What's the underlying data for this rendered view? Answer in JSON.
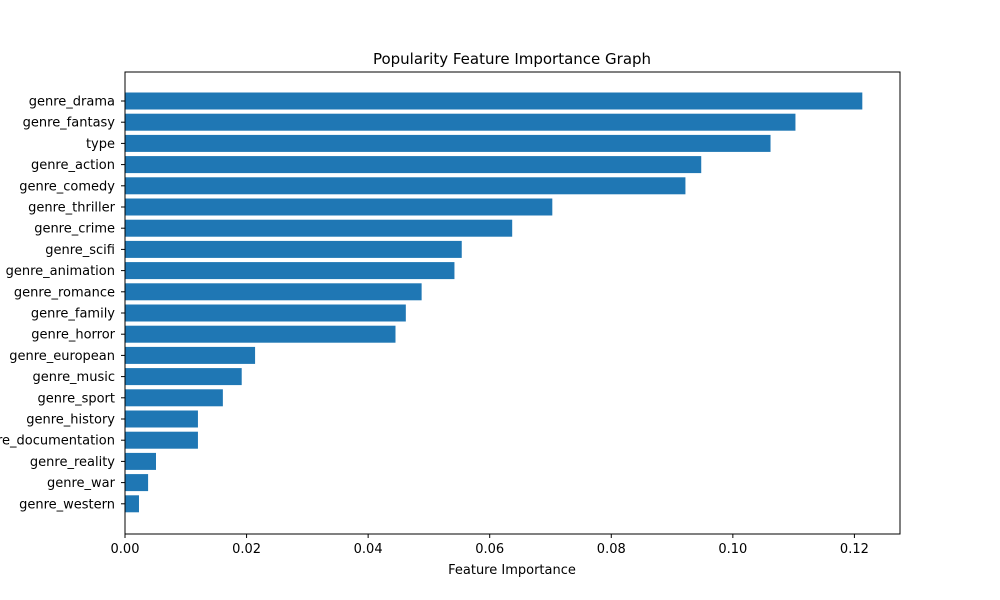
{
  "chart_data": {
    "type": "bar",
    "orientation": "horizontal",
    "title": "Popularity Feature Importance Graph",
    "xlabel": "Feature Importance",
    "ylabel": "",
    "xlim": [
      0,
      0.1275
    ],
    "xticks": [
      0.0,
      0.02,
      0.04,
      0.06,
      0.08,
      0.1,
      0.12
    ],
    "xtick_labels": [
      "0.00",
      "0.02",
      "0.04",
      "0.06",
      "0.08",
      "0.10",
      "0.12"
    ],
    "grid": false,
    "legend": "none",
    "bar_color": "#1f77b4",
    "categories": [
      "genre_drama",
      "genre_fantasy",
      "type",
      "genre_action",
      "genre_comedy",
      "genre_thriller",
      "genre_crime",
      "genre_scifi",
      "genre_animation",
      "genre_romance",
      "genre_family",
      "genre_horror",
      "genre_european",
      "genre_music",
      "genre_sport",
      "genre_history",
      "genre_documentation",
      "genre_reality",
      "genre_war",
      "genre_western"
    ],
    "values": [
      0.1213,
      0.1103,
      0.1062,
      0.0948,
      0.0922,
      0.0703,
      0.0637,
      0.0554,
      0.0542,
      0.0488,
      0.0462,
      0.0445,
      0.0214,
      0.0192,
      0.0161,
      0.012,
      0.012,
      0.0051,
      0.0038,
      0.0023
    ]
  }
}
